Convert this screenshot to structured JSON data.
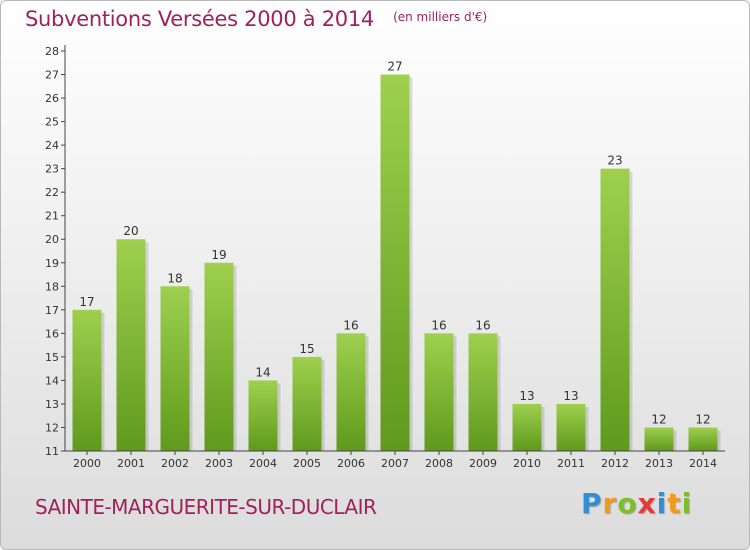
{
  "header": {
    "title": "Subventions Versées 2000 à 2014",
    "unit": "(en milliers d'€)"
  },
  "footer": {
    "town": "SAINTE-MARGUERITE-SUR-DUCLAIR",
    "brand": "Proxiti"
  },
  "colors": {
    "title": "#a0225a",
    "bar_top": "#9ed04e",
    "bar_bottom": "#5f9a1c",
    "brand_p": "#2e8fd6",
    "brand_r": "#f39a1e",
    "brand_o": "#7cbf2a",
    "brand_x": "#e23b3b",
    "brand_i": "#2e8fd6",
    "brand_t": "#f39a1e",
    "brand_i2": "#7cbf2a"
  },
  "chart_data": {
    "type": "bar",
    "title": "Subventions Versées 2000 à 2014",
    "subtitle": "(en milliers d'€)",
    "xlabel": "",
    "ylabel": "",
    "categories": [
      "2000",
      "2001",
      "2002",
      "2003",
      "2004",
      "2005",
      "2006",
      "2007",
      "2008",
      "2009",
      "2010",
      "2011",
      "2012",
      "2013",
      "2014"
    ],
    "values": [
      17,
      20,
      18,
      19,
      14,
      15,
      16,
      27,
      16,
      16,
      13,
      13,
      23,
      12,
      12
    ],
    "ylim": [
      11,
      28
    ],
    "yticks": [
      11,
      12,
      13,
      14,
      15,
      16,
      17,
      18,
      19,
      20,
      21,
      22,
      23,
      24,
      25,
      26,
      27,
      28
    ],
    "grid": false,
    "legend": "none"
  }
}
